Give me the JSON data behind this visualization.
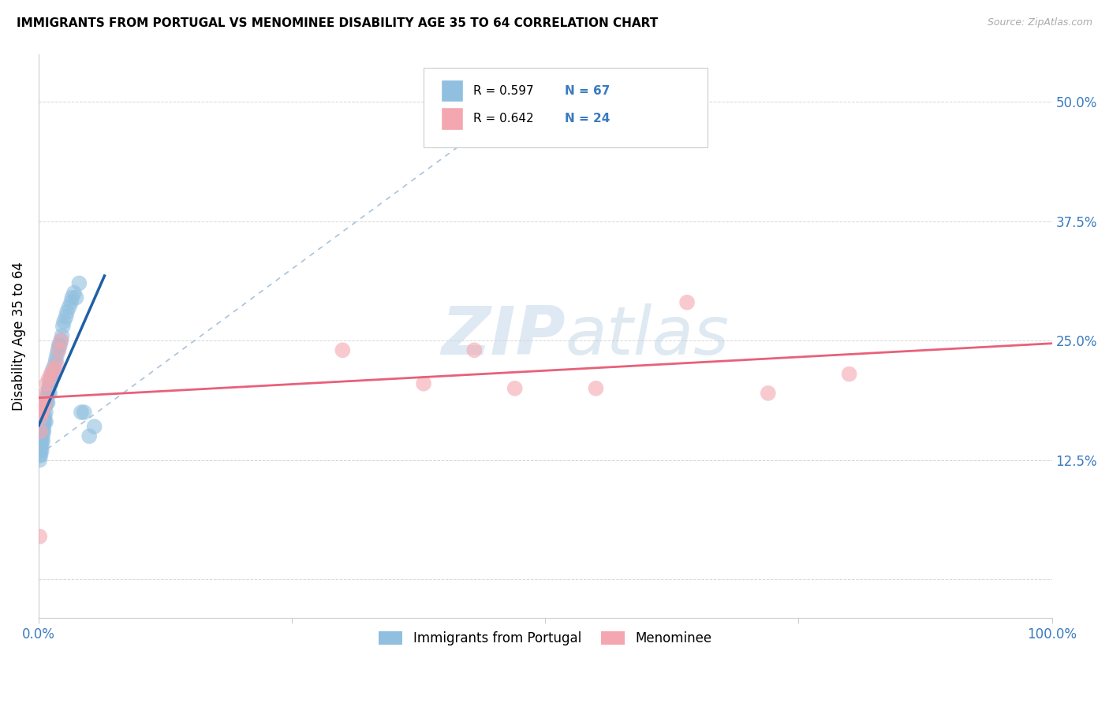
{
  "title": "IMMIGRANTS FROM PORTUGAL VS MENOMINEE DISABILITY AGE 35 TO 64 CORRELATION CHART",
  "source": "Source: ZipAtlas.com",
  "ylabel": "Disability Age 35 to 64",
  "xlim": [
    0,
    1.0
  ],
  "ylim": [
    -0.04,
    0.55
  ],
  "blue_color": "#90bfdf",
  "pink_color": "#f4a7b0",
  "blue_line_color": "#1f5fa6",
  "pink_line_color": "#e8607a",
  "dashed_line_color": "#a0bcd8",
  "watermark_zip": "ZIP",
  "watermark_atlas": "atlas",
  "blue_scatter_x": [
    0.001,
    0.001,
    0.001,
    0.001,
    0.001,
    0.001,
    0.002,
    0.002,
    0.002,
    0.002,
    0.002,
    0.003,
    0.003,
    0.003,
    0.003,
    0.003,
    0.004,
    0.004,
    0.004,
    0.004,
    0.005,
    0.005,
    0.005,
    0.005,
    0.006,
    0.006,
    0.006,
    0.007,
    0.007,
    0.007,
    0.008,
    0.008,
    0.009,
    0.009,
    0.01,
    0.01,
    0.011,
    0.011,
    0.012,
    0.012,
    0.013,
    0.013,
    0.014,
    0.015,
    0.016,
    0.017,
    0.018,
    0.019,
    0.02,
    0.021,
    0.022,
    0.023,
    0.024,
    0.025,
    0.027,
    0.028,
    0.03,
    0.032,
    0.033,
    0.035,
    0.037,
    0.04,
    0.042,
    0.045,
    0.05,
    0.055
  ],
  "blue_scatter_y": [
    0.14,
    0.15,
    0.155,
    0.13,
    0.135,
    0.125,
    0.145,
    0.15,
    0.135,
    0.14,
    0.13,
    0.145,
    0.155,
    0.14,
    0.135,
    0.16,
    0.155,
    0.165,
    0.15,
    0.145,
    0.165,
    0.17,
    0.16,
    0.155,
    0.17,
    0.18,
    0.165,
    0.175,
    0.185,
    0.165,
    0.19,
    0.185,
    0.195,
    0.185,
    0.2,
    0.195,
    0.205,
    0.195,
    0.21,
    0.205,
    0.215,
    0.21,
    0.22,
    0.215,
    0.225,
    0.23,
    0.235,
    0.24,
    0.245,
    0.245,
    0.25,
    0.255,
    0.265,
    0.27,
    0.275,
    0.28,
    0.285,
    0.29,
    0.295,
    0.3,
    0.295,
    0.31,
    0.175,
    0.175,
    0.15,
    0.16
  ],
  "pink_scatter_x": [
    0.001,
    0.001,
    0.002,
    0.002,
    0.003,
    0.004,
    0.005,
    0.006,
    0.007,
    0.008,
    0.01,
    0.012,
    0.015,
    0.018,
    0.02,
    0.022,
    0.3,
    0.38,
    0.43,
    0.47,
    0.55,
    0.64,
    0.72,
    0.8
  ],
  "pink_scatter_y": [
    0.045,
    0.175,
    0.155,
    0.17,
    0.175,
    0.185,
    0.18,
    0.185,
    0.195,
    0.205,
    0.21,
    0.215,
    0.22,
    0.225,
    0.24,
    0.25,
    0.24,
    0.205,
    0.24,
    0.2,
    0.2,
    0.29,
    0.195,
    0.215
  ]
}
